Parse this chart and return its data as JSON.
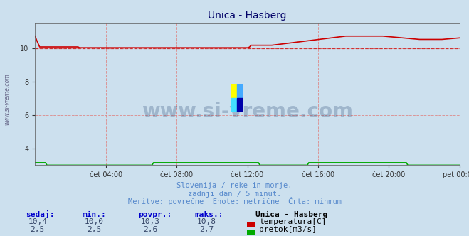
{
  "title": "Unica - Hasberg",
  "background_color": "#cce0ee",
  "plot_background": "#cce0ee",
  "grid_color": "#dd8888",
  "grid_style": "--",
  "ylim": [
    3.0,
    11.5
  ],
  "yticks": [
    4,
    6,
    8,
    10
  ],
  "xtick_labels": [
    "čet 04:00",
    "čet 08:00",
    "čet 12:00",
    "čet 16:00",
    "čet 20:00",
    "pet 00:00"
  ],
  "xtick_positions": [
    0.1667,
    0.3333,
    0.5,
    0.6667,
    0.8333,
    1.0
  ],
  "watermark_text": "www.si-vreme.com",
  "watermark_color": "#1a3a6a",
  "side_label": "www.si-vreme.com",
  "subtitle1": "Slovenija / reke in morje.",
  "subtitle2": "zadnji dan / 5 minut.",
  "subtitle3": "Meritve: povrečne  Enote: metrične  Črta: minmum",
  "subtitle_color": "#5588cc",
  "temp_color": "#cc0000",
  "flow_color": "#00aa00",
  "min_line_color": "#cc0000",
  "min_line_value": 10.0,
  "temp_min": 10.0,
  "temp_max": 10.8,
  "temp_avg": 10.3,
  "temp_now": 10.4,
  "flow_min": 2.5,
  "flow_max": 2.7,
  "flow_avg": 2.6,
  "flow_now": 2.5,
  "label_sedaj": "sedaj:",
  "label_min": "min.:",
  "label_povpr": "povpr.:",
  "label_maks": "maks.:",
  "label_station": "Unica - Hasberg",
  "label_temp": "temperatura[C]",
  "label_flow": "pretok[m3/s]",
  "n_points": 288,
  "icon_colors": [
    "#ffff00",
    "#00aaff",
    "#00ccff",
    "#0000aa"
  ]
}
